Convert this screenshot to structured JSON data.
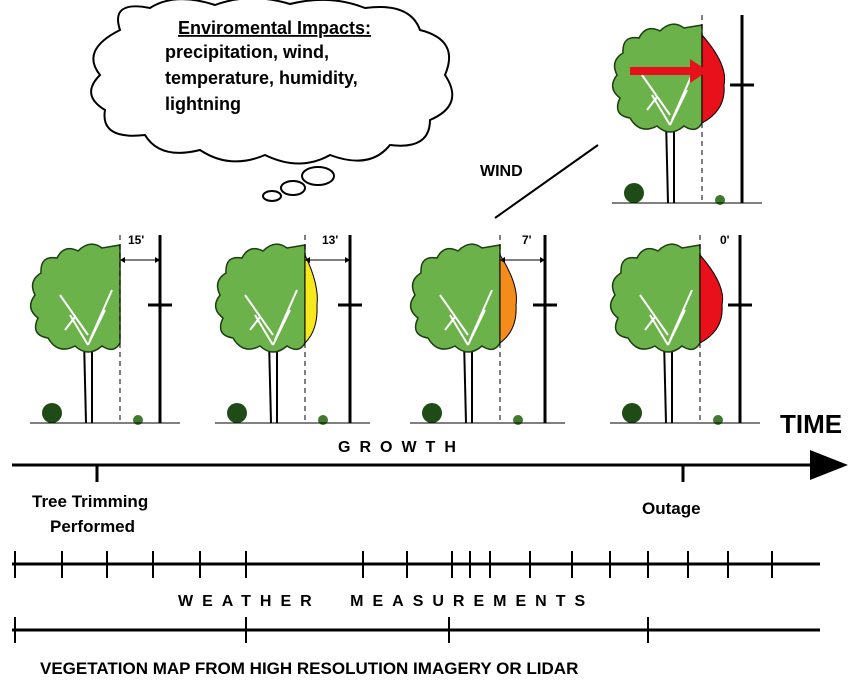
{
  "cloud": {
    "title": "Enviromental Impacts:",
    "lines": [
      "precipitation, wind,",
      "temperature, humidity,",
      "lightning"
    ]
  },
  "wind_label": "WIND",
  "clearances": [
    "15'",
    "13'",
    "7'",
    "0'"
  ],
  "time_label": "TIME",
  "growth_label": "GROWTH",
  "events": {
    "trimming": [
      "Tree Trimming",
      "Performed"
    ],
    "outage": "Outage"
  },
  "weather_label": "WEATHER MEASUREMENTS",
  "vegetation_label": "VEGETATION MAP FROM HIGH RESOLUTION IMAGERY OR LIDAR"
}
